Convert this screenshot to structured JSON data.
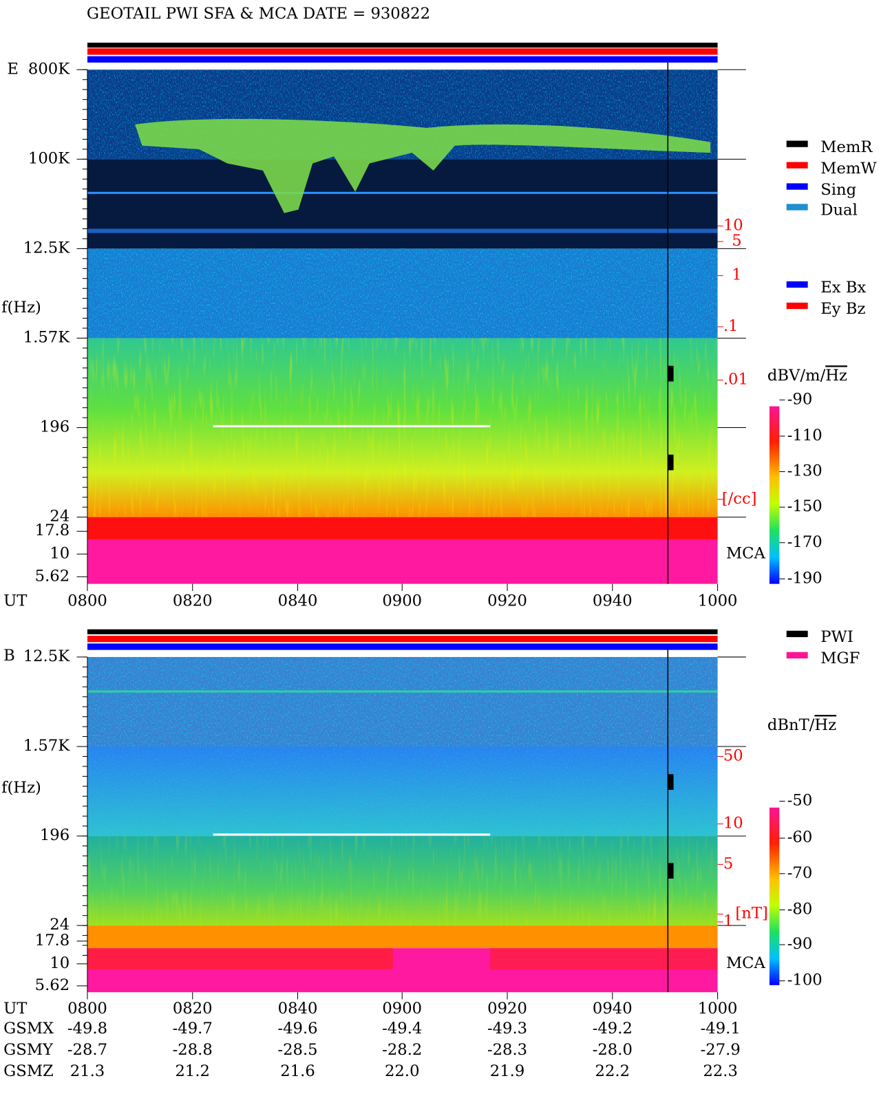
{
  "title": "GEOTAIL  PWI SFA & MCA   DATE = 930822",
  "panels": [
    {
      "label": "E",
      "ylabel": "f(Hz)",
      "freq_labels": [
        "800K",
        "100K",
        "12.5K",
        "1.57K",
        "196",
        "24",
        "17.8",
        "10",
        "5.62"
      ],
      "right_labels": [
        "10",
        "5",
        "1",
        ".1",
        ".01",
        "[/cc]"
      ],
      "mca": "MCA",
      "legend": [
        {
          "name": "MemR",
          "color": "#000000"
        },
        {
          "name": "MemW",
          "color": "#ff0000"
        },
        {
          "name": "Sing",
          "color": "#0000ff"
        },
        {
          "name": "Dual",
          "color": "#1f8fd0"
        }
      ],
      "legend2": [
        {
          "name": "Ex Bx",
          "color": "#0000ff"
        },
        {
          "name": "Ey Bz",
          "color": "#ff0000"
        }
      ],
      "colorbar": {
        "title": "dBV/m/",
        "title_root": "Hz",
        "ticks": [
          "-90",
          "-110",
          "-130",
          "-150",
          "-170",
          "-190"
        ]
      }
    },
    {
      "label": "B",
      "ylabel": "f(Hz)",
      "freq_labels": [
        "12.5K",
        "1.57K",
        "196",
        "24",
        "17.8",
        "10",
        "5.62"
      ],
      "right_labels": [
        "50",
        "10",
        "5",
        "1",
        "[nT]"
      ],
      "mca": "MCA",
      "legend": [
        {
          "name": "PWI",
          "color": "#000000"
        },
        {
          "name": "MGF",
          "color": "#ff1493"
        }
      ],
      "legend2": [],
      "colorbar": {
        "title": "dBnT/",
        "title_root": "Hz",
        "ticks": [
          "-50",
          "-60",
          "-70",
          "-80",
          "-90",
          "-100"
        ]
      }
    }
  ],
  "x_axis": {
    "label": "UT",
    "ticks": [
      "0800",
      "0820",
      "0840",
      "0900",
      "0920",
      "0940",
      "1000"
    ]
  },
  "orbit": [
    {
      "label": "GSMX",
      "values": [
        "-49.8",
        "-49.7",
        "-49.6",
        "-49.4",
        "-49.3",
        "-49.2",
        "-49.1"
      ]
    },
    {
      "label": "GSMY",
      "values": [
        "-28.7",
        "-28.8",
        "-28.5",
        "-28.2",
        "-28.3",
        "-28.0",
        "-27.9"
      ]
    },
    {
      "label": "GSMZ",
      "values": [
        "21.3",
        "21.2",
        "21.6",
        "22.0",
        "21.9",
        "22.2",
        "22.3"
      ]
    }
  ]
}
